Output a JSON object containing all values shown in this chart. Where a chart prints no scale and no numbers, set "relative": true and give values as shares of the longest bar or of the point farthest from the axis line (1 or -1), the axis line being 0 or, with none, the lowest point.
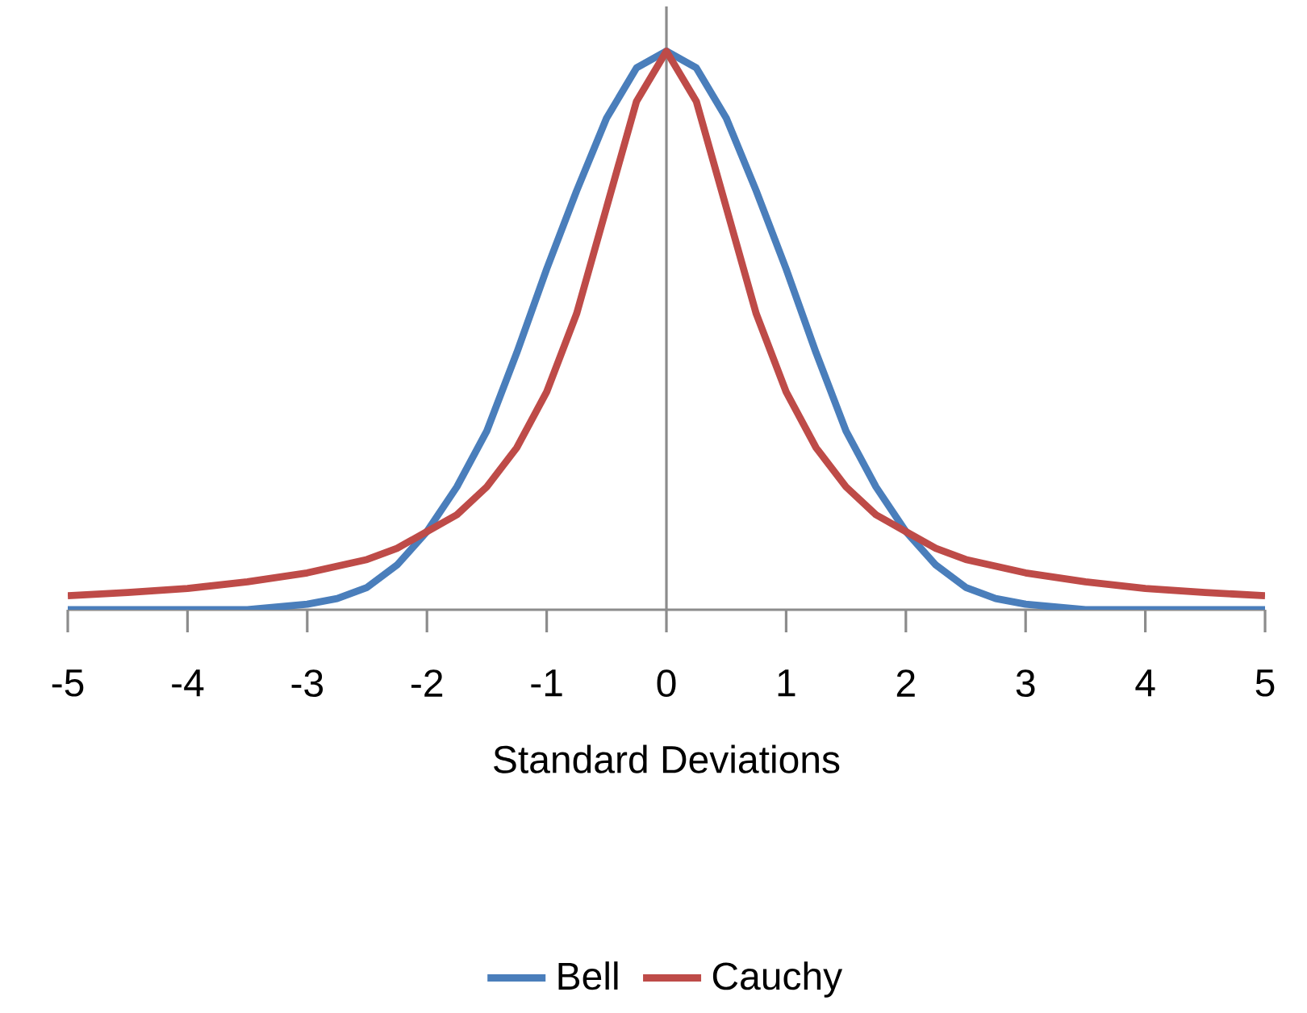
{
  "chart_data": {
    "type": "line",
    "xlabel": "Standard Deviations",
    "relative": true,
    "xlim": [
      -5,
      5
    ],
    "xticks": [
      -5,
      -4,
      -3,
      -2,
      -1,
      0,
      1,
      2,
      3,
      4,
      5
    ],
    "legend": "bottom",
    "grid": false,
    "marker": "none",
    "line_style": "solid",
    "ref_lines": [
      {
        "axis": "x",
        "value": 0,
        "color": "#8c8c8c"
      }
    ],
    "series": [
      {
        "name": "Bell",
        "color": "#4a7ebb",
        "x": [
          -5,
          -4.5,
          -4,
          -3.5,
          -3,
          -2.75,
          -2.5,
          -2.25,
          -2,
          -1.75,
          -1.5,
          -1.25,
          -1,
          -0.75,
          -0.5,
          -0.25,
          0,
          0.25,
          0.5,
          0.75,
          1,
          1.25,
          1.5,
          1.75,
          2,
          2.25,
          2.5,
          2.75,
          3,
          3.5,
          4,
          4.5,
          5
        ],
        "values": [
          0,
          0,
          0,
          0,
          0.01,
          0.02,
          0.04,
          0.08,
          0.14,
          0.22,
          0.32,
          0.46,
          0.61,
          0.75,
          0.88,
          0.97,
          1,
          0.97,
          0.88,
          0.75,
          0.61,
          0.46,
          0.32,
          0.22,
          0.14,
          0.08,
          0.04,
          0.02,
          0.01,
          0,
          0,
          0,
          0
        ]
      },
      {
        "name": "Cauchy",
        "color": "#be4b48",
        "x": [
          -5,
          -4.5,
          -4,
          -3.5,
          -3,
          -2.75,
          -2.5,
          -2.25,
          -2,
          -1.75,
          -1.5,
          -1.25,
          -1,
          -0.75,
          -0.5,
          -0.25,
          0,
          0.25,
          0.5,
          0.75,
          1,
          1.25,
          1.5,
          1.75,
          2,
          2.25,
          2.5,
          2.75,
          3,
          3.5,
          4,
          4.5,
          5
        ],
        "values": [
          0.025,
          0.031,
          0.038,
          0.05,
          0.066,
          0.078,
          0.09,
          0.11,
          0.14,
          0.17,
          0.22,
          0.29,
          0.39,
          0.53,
          0.72,
          0.91,
          1,
          0.91,
          0.72,
          0.53,
          0.39,
          0.29,
          0.22,
          0.17,
          0.14,
          0.11,
          0.09,
          0.078,
          0.066,
          0.05,
          0.038,
          0.031,
          0.025
        ]
      }
    ]
  }
}
